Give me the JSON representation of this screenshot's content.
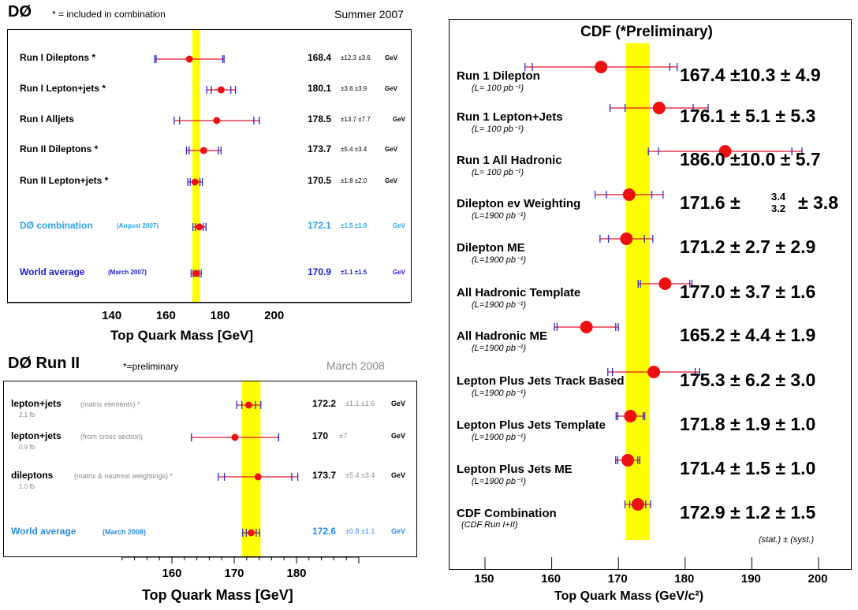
{
  "d0_2007": {
    "title": "DØ",
    "note": "* = included in combination",
    "date": "Summer 2007",
    "xlabel": "Top Quark Mass  [GeV]",
    "ticks": [
      "140",
      "160",
      "180",
      "200"
    ],
    "band": [
      169.5,
      172.3
    ],
    "rows": [
      {
        "label": "Run I  Dileptons *",
        "sub": "",
        "value": "168.4",
        "errs": "±12.3 ±3.6",
        "unit": "GeV",
        "color": "#000"
      },
      {
        "label": "Run I  Lepton+jets *",
        "sub": "",
        "value": "180.1",
        "errs": "±3.6 ±3.9",
        "unit": "GeV",
        "color": "#000"
      },
      {
        "label": "Run I  Alljets",
        "sub": "",
        "value": "178.5",
        "errs": "±13.7 ±7.7",
        "unit": "GeV",
        "color": "#000"
      },
      {
        "label": "Run II  Dileptons *",
        "sub": "",
        "value": "173.7",
        "errs": "±5.4 ±3.4",
        "unit": "GeV",
        "color": "#000"
      },
      {
        "label": "Run II  Lepton+jets *",
        "sub": "",
        "value": "170.5",
        "errs": "±1.8 ±2.0",
        "unit": "GeV",
        "color": "#000"
      },
      {
        "label": "DØ combination",
        "sub": "(August 2007)",
        "value": "172.1",
        "errs": "±1.5 ±1.9",
        "unit": "GeV",
        "color": "#2aa3e6"
      },
      {
        "label": "World average",
        "sub": "(March 2007)",
        "value": "170.9",
        "errs": "±1.1 ±1.5",
        "unit": "GeV",
        "color": "#1a1ad6"
      }
    ]
  },
  "d0_2008": {
    "title": "DØ Run II",
    "note": "*=preliminary",
    "date": "March 2008",
    "xlabel": "Top Quark Mass  [GeV]",
    "ticks": [
      "160",
      "170",
      "180"
    ],
    "band": [
      171.1,
      174.1
    ],
    "rows": [
      {
        "label": "lepton+jets",
        "sub": "(matrix elements) *",
        "lumi": "2.1 fb",
        "value": "172.2",
        "errs": "±1.1 ±1.6",
        "unit": "GeV",
        "color": "#000"
      },
      {
        "label": "lepton+jets",
        "sub": "(from cross section)",
        "lumi": "0.9 fb",
        "value": "170",
        "errs": "±7",
        "unit": "GeV",
        "color": "#000"
      },
      {
        "label": "dileptons",
        "sub": "(matrix & neutrino weightings) *",
        "lumi": "1.0 fb",
        "value": "173.7",
        "errs": "±5.4 ±3.4",
        "unit": "GeV",
        "color": "#000"
      },
      {
        "label": "World average",
        "sub": "(March 2008)",
        "lumi": "",
        "value": "172.6",
        "errs": "±0.8 ±1.1",
        "unit": "GeV",
        "color": "#2a8ae6"
      }
    ]
  },
  "cdf": {
    "title": "CDF (*Preliminary)",
    "xlabel": "Top Quark Mass (GeV/c²)",
    "ticks": [
      "150",
      "160",
      "170",
      "180",
      "190",
      "200"
    ],
    "band": [
      171.1,
      174.7
    ],
    "footnote": "(stat.) ±  (syst.)",
    "rows": [
      {
        "label": "Run 1 Dilepton",
        "lumi": "(L= 100 pb⁻¹)",
        "value": "167.4 ±10.3 ± 4.9"
      },
      {
        "label": "Run 1 Lepton+Jets",
        "lumi": "(L= 100 pb⁻¹)",
        "value": "176.1 ± 5.1 ± 5.3"
      },
      {
        "label": "Run 1 All Hadronic",
        "lumi": "(L= 100 pb⁻¹)",
        "value": "186.0 ±10.0 ± 5.7"
      },
      {
        "label": "Dilepton ev Weighting",
        "lumi": "(L=1900 pb⁻¹)",
        "value": "171.6 ±",
        "frac_up": "3.4",
        "frac_dn": "3.2",
        "value_tail": "± 3.8"
      },
      {
        "label": "Dilepton ME",
        "lumi": "(L=1900 pb⁻¹)",
        "value": "171.2 ± 2.7 ± 2.9"
      },
      {
        "label": "All Hadronic Template",
        "lumi": "(L=1900 pb⁻¹)",
        "value": "177.0 ± 3.7 ± 1.6"
      },
      {
        "label": "All Hadronic ME",
        "lumi": "(L=1900 pb⁻¹)",
        "value": "165.2 ± 4.4 ± 1.9"
      },
      {
        "label": "Lepton Plus Jets Track Based",
        "lumi": "(L=1900 pb⁻¹)",
        "value": "175.3 ± 6.2 ± 3.0"
      },
      {
        "label": "Lepton Plus Jets Template",
        "lumi": "(L=1900 pb⁻¹)",
        "value": "171.8 ± 1.9 ± 1.0"
      },
      {
        "label": "Lepton Plus Jets ME",
        "lumi": "(L=1900 pb⁻¹)",
        "value": "171.4 ± 1.5 ± 1.0"
      },
      {
        "label": "CDF Combination",
        "lumi": "(CDF Run I+II)",
        "value": "172.9 ± 1.2 ± 1.5"
      }
    ]
  },
  "chart_data": [
    {
      "type": "scatter",
      "title": "DØ",
      "xlabel": "Top Quark Mass  [GeV]",
      "xlim": [
        120,
        220
      ],
      "categories": [
        "Run I  Dileptons *",
        "Run I  Lepton+jets *",
        "Run I  Alljets",
        "Run II  Dileptons *",
        "Run II  Lepton+jets *",
        "DØ combination",
        "World average"
      ],
      "values": [
        168.4,
        180.1,
        178.5,
        173.7,
        170.5,
        172.1,
        170.9
      ],
      "stat_err": [
        12.3,
        3.6,
        13.7,
        5.4,
        1.8,
        1.5,
        1.1
      ],
      "syst_err": [
        3.6,
        3.9,
        7.7,
        3.4,
        2.0,
        1.9,
        1.5
      ]
    },
    {
      "type": "scatter",
      "title": "DØ Run II",
      "xlabel": "Top Quark Mass  [GeV]",
      "xlim": [
        150,
        190
      ],
      "categories": [
        "lepton+jets (matrix elements)",
        "lepton+jets (from cross section)",
        "dileptons (matrix & neutrino weightings)",
        "World average"
      ],
      "values": [
        172.2,
        170,
        173.7,
        172.6
      ],
      "stat_err": [
        1.1,
        7,
        5.4,
        0.8
      ],
      "syst_err": [
        1.6,
        0,
        3.4,
        1.1
      ]
    },
    {
      "type": "scatter",
      "title": "CDF (*Preliminary)",
      "xlabel": "Top Quark Mass (GeV/c²)",
      "xlim": [
        145,
        205
      ],
      "categories": [
        "Run 1 Dilepton",
        "Run 1 Lepton+Jets",
        "Run 1 All Hadronic",
        "Dilepton ev Weighting",
        "Dilepton ME",
        "All Hadronic Template",
        "All Hadronic ME",
        "Lepton Plus Jets Track Based",
        "Lepton Plus Jets Template",
        "Lepton Plus Jets ME",
        "CDF Combination"
      ],
      "values": [
        167.4,
        176.1,
        186.0,
        171.6,
        171.2,
        177.0,
        165.2,
        175.3,
        171.8,
        171.4,
        172.9
      ],
      "stat_err": [
        10.3,
        5.1,
        10.0,
        3.4,
        2.7,
        3.7,
        4.4,
        6.2,
        1.9,
        1.5,
        1.2
      ],
      "syst_err": [
        4.9,
        5.3,
        5.7,
        3.8,
        2.9,
        1.6,
        1.9,
        3.0,
        1.0,
        1.0,
        1.5
      ]
    }
  ]
}
